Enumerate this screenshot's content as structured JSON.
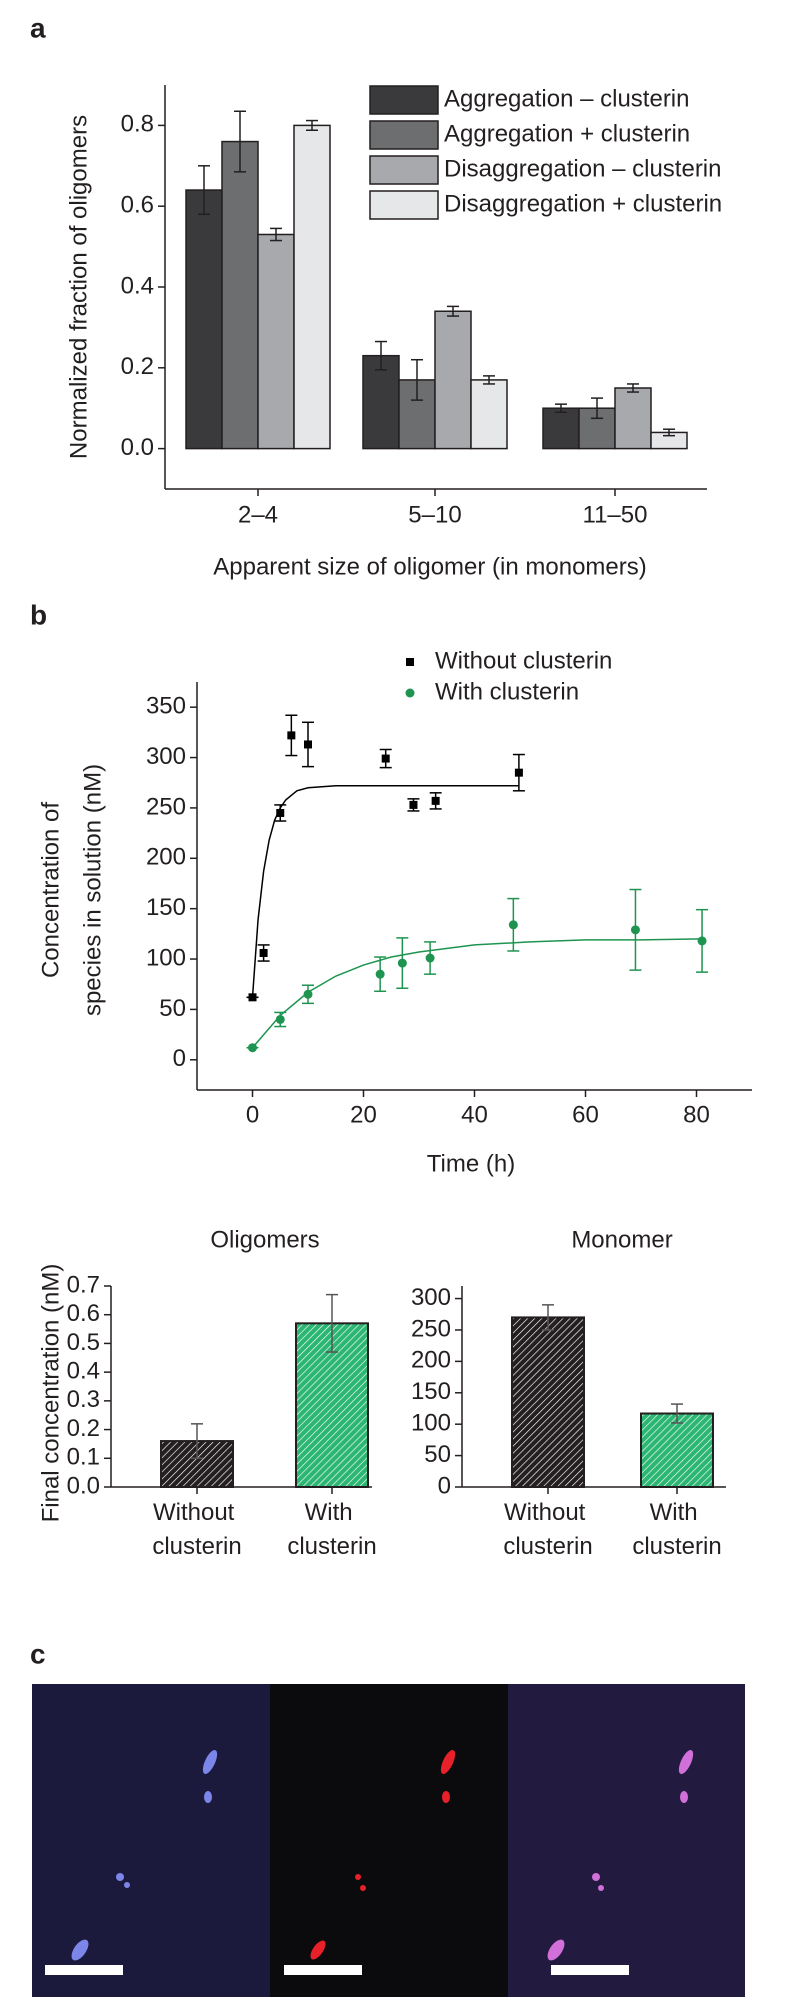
{
  "chart_data": [
    {
      "type": "bar",
      "panel": "a",
      "ylabel": "Normalized fraction of oligomers",
      "xlabel": "Apparent size of oligomer (in monomers)",
      "categories": [
        "2–4",
        "5–10",
        "11–50"
      ],
      "series": [
        {
          "name": "Aggregation – clusterin",
          "color": "#3a3a3c",
          "values": [
            0.64,
            0.23,
            0.1
          ],
          "errors": [
            0.06,
            0.035,
            0.01
          ]
        },
        {
          "name": "Aggregation + clusterin",
          "color": "#6d6e70",
          "values": [
            0.76,
            0.17,
            0.1
          ],
          "errors": [
            0.075,
            0.05,
            0.025
          ]
        },
        {
          "name": "Disaggregation – clusterin",
          "color": "#a7a9ac",
          "values": [
            0.53,
            0.34,
            0.15
          ],
          "errors": [
            0.015,
            0.012,
            0.01
          ]
        },
        {
          "name": "Disaggregation + clusterin",
          "color": "#e6e7e8",
          "values": [
            0.8,
            0.17,
            0.04
          ],
          "errors": [
            0.012,
            0.01,
            0.008
          ]
        }
      ],
      "ylim": [
        -0.1,
        0.9
      ],
      "yticks": [
        {
          "value": 0,
          "label": "0.0"
        },
        0.2,
        0.4,
        0.6,
        0.8
      ],
      "legend": "upper right"
    },
    {
      "type": "scatter",
      "panel": "b",
      "ylabel": [
        "Concentration of",
        "species in solution (nM)"
      ],
      "xlabel": "Time (h)",
      "series": [
        {
          "name": "Without clusterin",
          "color": "#000000",
          "marker": "square",
          "x": [
            0,
            2,
            5,
            7,
            10,
            24,
            29,
            33,
            48
          ],
          "values": [
            62,
            106,
            245,
            322,
            313,
            299,
            253,
            257,
            285
          ],
          "errors": [
            0,
            8,
            8,
            20,
            22,
            9,
            6,
            8,
            18
          ],
          "fit_x": [
            0,
            1,
            2,
            3,
            4,
            5,
            6,
            8,
            10,
            15,
            20,
            30,
            48
          ],
          "fit_values": [
            62,
            139,
            187,
            218,
            238,
            250,
            258,
            267,
            270,
            272,
            272,
            272,
            272
          ]
        },
        {
          "name": "With clusterin",
          "color": "#1e9450",
          "marker": "circle",
          "x": [
            0,
            5,
            10,
            23,
            27,
            32,
            47,
            69,
            81
          ],
          "values": [
            12,
            40,
            65,
            85,
            96,
            101,
            134,
            129,
            118
          ],
          "errors": [
            0,
            7,
            9,
            17,
            25,
            16,
            26,
            40,
            31
          ],
          "fit_x": [
            0,
            5,
            10,
            15,
            20,
            25,
            30,
            40,
            50,
            60,
            70,
            81
          ],
          "fit_values": [
            12,
            44,
            67,
            83,
            94,
            102,
            107,
            114,
            117,
            119,
            119,
            120
          ]
        }
      ],
      "xlim": [
        -10,
        90
      ],
      "xticks": [
        0,
        20,
        40,
        60,
        80
      ],
      "ylim": [
        -30,
        375
      ],
      "yticks": [
        0,
        50,
        100,
        150,
        200,
        250,
        300,
        350
      ],
      "legend": "upper center"
    },
    {
      "type": "bar",
      "title": "Oligomers",
      "ylabel": "Final concentration (nM)",
      "categories": [
        "Without clusterin",
        "With clusterin"
      ],
      "values": [
        0.16,
        0.57
      ],
      "errors": [
        0.06,
        0.1
      ],
      "colors": [
        "#231f20",
        "#2bb673"
      ],
      "hatch": true,
      "ylim": [
        0,
        0.7
      ],
      "yticks": [
        {
          "value": 0,
          "label": "0.0"
        },
        0.1,
        0.2,
        0.3,
        0.4,
        0.5,
        0.6,
        0.7
      ]
    },
    {
      "type": "bar",
      "title": "Monomer",
      "categories": [
        "Without clusterin",
        "With clusterin"
      ],
      "values": [
        270,
        117
      ],
      "errors": [
        20,
        15
      ],
      "colors": [
        "#231f20",
        "#2bb673"
      ],
      "hatch": true,
      "ylim": [
        0,
        320
      ],
      "yticks": [
        0,
        50,
        100,
        150,
        200,
        250,
        300
      ]
    }
  ],
  "images": {
    "panel": "c"
  }
}
